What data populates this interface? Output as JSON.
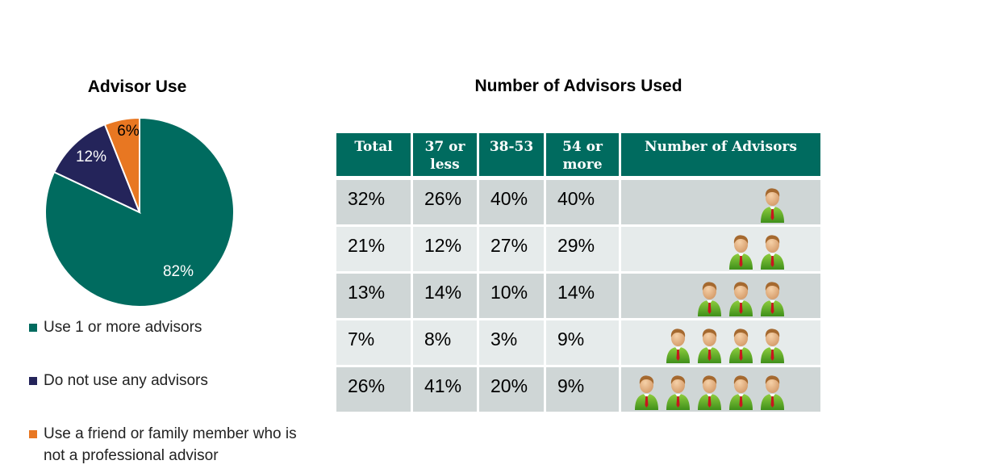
{
  "chart_data": [
    {
      "type": "pie",
      "title": "Advisor Use",
      "slices": [
        {
          "label": "Use 1 or more advisors",
          "value": 82,
          "value_label": "82%",
          "color": "#006b5f"
        },
        {
          "label": "Do not use any advisors",
          "value": 12,
          "value_label": "12%",
          "color": "#24245a"
        },
        {
          "label": "Use a friend or family member who is not a professional advisor",
          "value": 6,
          "value_label": "6%",
          "color": "#e87722"
        }
      ],
      "legend_position": "bottom"
    },
    {
      "type": "table",
      "title": "Number of Advisors Used",
      "header_color": "#006b5f",
      "columns": [
        "Total",
        "37 or less",
        "38-53",
        "54 or more",
        "Number of Advisors"
      ],
      "rows": [
        {
          "cells": [
            "32%",
            "26%",
            "40%",
            "40%"
          ],
          "advisors": 1
        },
        {
          "cells": [
            "21%",
            "12%",
            "27%",
            "29%"
          ],
          "advisors": 2
        },
        {
          "cells": [
            "13%",
            "14%",
            "10%",
            "14%"
          ],
          "advisors": 3
        },
        {
          "cells": [
            "7%",
            "8%",
            "3%",
            "9%"
          ],
          "advisors": 4
        },
        {
          "cells": [
            "26%",
            "41%",
            "20%",
            "9%"
          ],
          "advisors": 5
        }
      ],
      "icon": "person-advisor-icon"
    }
  ]
}
